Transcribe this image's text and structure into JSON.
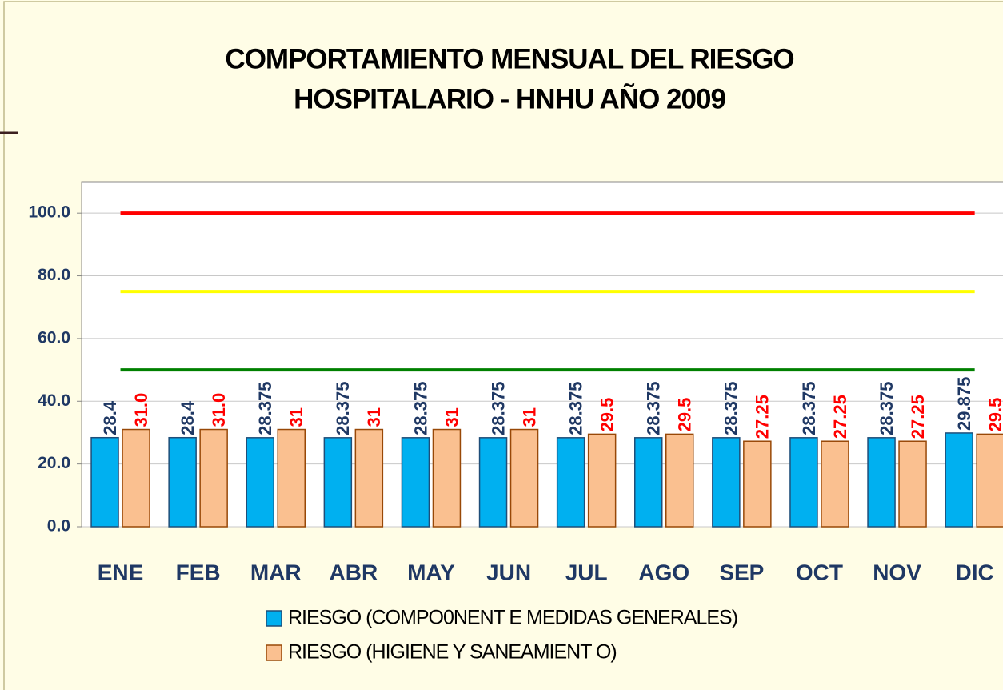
{
  "chart_data": {
    "type": "bar",
    "title": [
      "COMPORTAMIENTO MENSUAL DEL RIESGO",
      "HOSPITALARIO - HNHU AÑO 2009"
    ],
    "categories": [
      "ENE",
      "FEB",
      "MAR",
      "ABR",
      "MAY",
      "JUN",
      "JUL",
      "AGO",
      "SEP",
      "OCT",
      "NOV",
      "DIC"
    ],
    "series": [
      {
        "name": "RIESGO (COMPO0NENT E MEDIDAS GENERALES)",
        "color": "#00b0f0",
        "label_color": "#1f3864",
        "values": [
          28.4,
          28.4,
          28.375,
          28.375,
          28.375,
          28.375,
          28.375,
          28.375,
          28.375,
          28.375,
          28.375,
          29.875
        ],
        "value_labels": [
          "28.4",
          "28.4",
          "28.375",
          "28.375",
          "28.375",
          "28.375",
          "28.375",
          "28.375",
          "28.375",
          "28.375",
          "28.375",
          "29.875"
        ]
      },
      {
        "name": "RIESGO (HIGIENE Y SANEAMIENT O)",
        "color": "#fac090",
        "label_color": "#ff0000",
        "values": [
          31,
          31,
          31,
          31,
          31,
          31,
          29.5,
          29.5,
          27.25,
          27.25,
          27.25,
          29.5
        ],
        "value_labels": [
          "31.0",
          "31.0",
          "31",
          "31",
          "31",
          "31",
          "29.5",
          "29.5",
          "27.25",
          "27.25",
          "27.25",
          "29.5"
        ]
      }
    ],
    "reference_lines": [
      {
        "value": 100,
        "color": "#ff0000"
      },
      {
        "value": 75,
        "color": "#ffff00"
      },
      {
        "value": 50,
        "color": "#008000"
      }
    ],
    "ylim": [
      0,
      110
    ],
    "yticks": [
      {
        "value": 0,
        "label": "0.0"
      },
      {
        "value": 20,
        "label": "20.0"
      },
      {
        "value": 40,
        "label": "40.0"
      },
      {
        "value": 60,
        "label": "60.0"
      },
      {
        "value": 80,
        "label": "80.0"
      },
      {
        "value": 100,
        "label": "100.0"
      }
    ],
    "grid": true
  }
}
